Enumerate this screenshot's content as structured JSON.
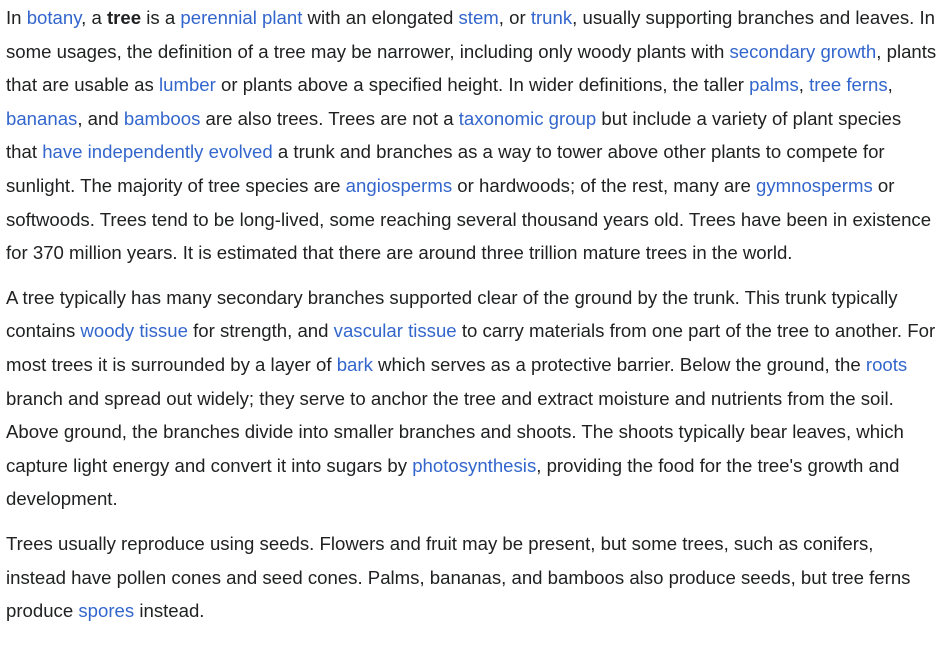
{
  "article": {
    "paragraphs": [
      [
        {
          "t": "In "
        },
        {
          "t": "botany",
          "link": true
        },
        {
          "t": ", a "
        },
        {
          "t": "tree",
          "bold": true
        },
        {
          "t": " is a "
        },
        {
          "t": "perennial plant",
          "link": true
        },
        {
          "t": " with an elongated "
        },
        {
          "t": "stem",
          "link": true
        },
        {
          "t": ", or "
        },
        {
          "t": "trunk",
          "link": true
        },
        {
          "t": ", usually supporting branches and leaves. In some usages, the definition of a tree may be narrower, including only woody plants with "
        },
        {
          "t": "secondary growth",
          "link": true
        },
        {
          "t": ", plants that are usable as "
        },
        {
          "t": "lumber",
          "link": true
        },
        {
          "t": " or plants above a specified height. In wider definitions, the taller "
        },
        {
          "t": "palms",
          "link": true
        },
        {
          "t": ", "
        },
        {
          "t": "tree ferns",
          "link": true
        },
        {
          "t": ", "
        },
        {
          "t": "bananas",
          "link": true
        },
        {
          "t": ", and "
        },
        {
          "t": "bamboos",
          "link": true
        },
        {
          "t": " are also trees. Trees are not a "
        },
        {
          "t": "taxonomic group",
          "link": true
        },
        {
          "t": " but include a variety of plant species that "
        },
        {
          "t": "have independently evolved",
          "link": true
        },
        {
          "t": " a trunk and branches as a way to tower above other plants to compete for sunlight. The majority of tree species are "
        },
        {
          "t": "angiosperms",
          "link": true
        },
        {
          "t": " or hardwoods; of the rest, many are "
        },
        {
          "t": "gymnosperms",
          "link": true
        },
        {
          "t": " or softwoods. Trees tend to be long-lived, some reaching several thousand years old. Trees have been in existence for 370 million years. It is estimated that there are around three trillion mature trees in the world."
        }
      ],
      [
        {
          "t": "A tree typically has many secondary branches supported clear of the ground by the trunk. This trunk typically contains "
        },
        {
          "t": "woody tissue",
          "link": true
        },
        {
          "t": " for strength, and "
        },
        {
          "t": "vascular tissue",
          "link": true
        },
        {
          "t": " to carry materials from one part of the tree to another. For most trees it is surrounded by a layer of "
        },
        {
          "t": "bark",
          "link": true
        },
        {
          "t": " which serves as a protective barrier. Below the ground, the "
        },
        {
          "t": "roots",
          "link": true
        },
        {
          "t": " branch and spread out widely; they serve to anchor the tree and extract moisture and nutrients from the soil. Above ground, the branches divide into smaller branches and shoots. The shoots typically bear leaves, which capture light energy and convert it into sugars by "
        },
        {
          "t": "photosynthesis",
          "link": true
        },
        {
          "t": ", providing the food for the tree's growth and development."
        }
      ],
      [
        {
          "t": "Trees usually reproduce using seeds. Flowers and fruit may be present, but some trees, such as conifers, instead have pollen cones and seed cones. Palms, bananas, and bamboos also produce seeds, but tree ferns produce "
        },
        {
          "t": "spores",
          "link": true
        },
        {
          "t": " instead."
        }
      ]
    ]
  },
  "colors": {
    "text": "#202122",
    "link": "#3366cc",
    "background": "#ffffff"
  }
}
